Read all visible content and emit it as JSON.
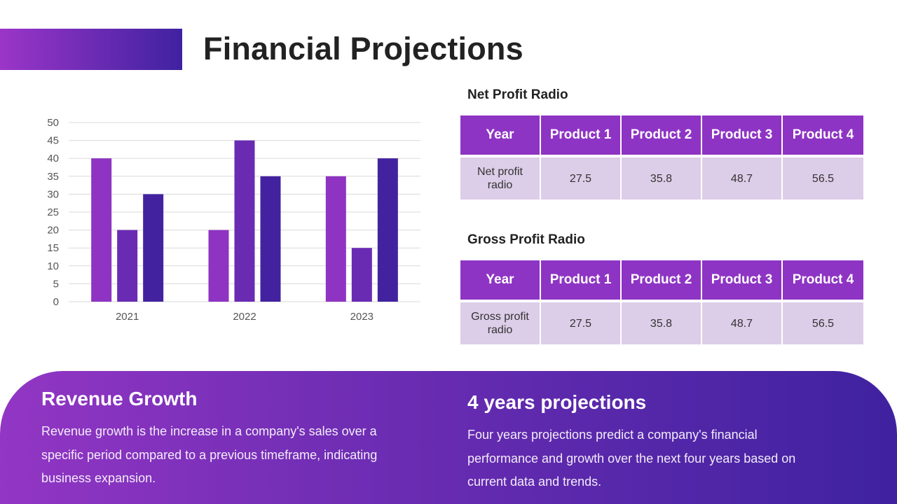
{
  "slide": {
    "title": "Financial Projections"
  },
  "colors": {
    "accent_start": "#9b35c8",
    "accent_end": "#3f22a0",
    "header_cell": "#8e34c4",
    "body_cell": "#dccde8"
  },
  "chart_data": {
    "type": "bar",
    "title": "",
    "xlabel": "",
    "ylabel": "",
    "categories": [
      "2021",
      "2022",
      "2023"
    ],
    "series": [
      {
        "values": [
          40,
          20,
          35
        ],
        "color": "#8f34c2"
      },
      {
        "values": [
          20,
          45,
          15
        ],
        "color": "#6a2bb3"
      },
      {
        "values": [
          30,
          35,
          40
        ],
        "color": "#4322a0"
      }
    ],
    "ylim": [
      0,
      50
    ],
    "yticks": [
      "0",
      "5",
      "10",
      "15",
      "20",
      "25",
      "30",
      "35",
      "40",
      "45",
      "50"
    ],
    "grid": true,
    "legend": "none"
  },
  "tables": {
    "net": {
      "title": "Net Profit Radio",
      "headers": [
        "Year",
        "Product 1",
        "Product 2",
        "Product 3",
        "Product 4"
      ],
      "row": [
        "Net profit radio",
        "27.5",
        "35.8",
        "48.7",
        "56.5"
      ]
    },
    "gross": {
      "title": "Gross Profit Radio",
      "headers": [
        "Year",
        "Product 1",
        "Product 2",
        "Product 3",
        "Product 4"
      ],
      "row": [
        "Gross profit radio",
        "27.5",
        "35.8",
        "48.7",
        "56.5"
      ]
    }
  },
  "bottom": {
    "left": {
      "heading": "Revenue Growth",
      "text": "Revenue growth is the increase in a company's sales over a specific period compared to a previous timeframe, indicating business expansion."
    },
    "right": {
      "heading": "4 years projections",
      "text": "Four years projections predict a company's financial performance and growth over the next four years based on current data and trends."
    }
  }
}
